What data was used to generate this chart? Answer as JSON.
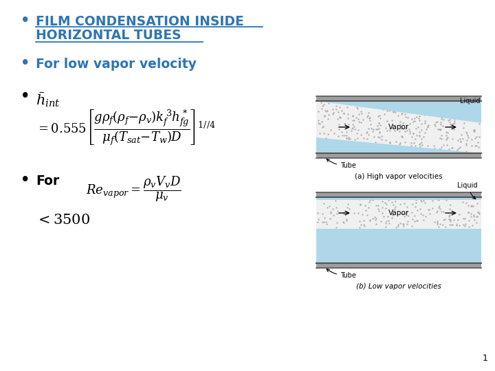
{
  "bg_color": "#ffffff",
  "title_color": "#2E75B6",
  "bullet_color": "#2E75B6",
  "text_color": "#000000",
  "liquid_color": "#AED8EA",
  "tube_wall_color": "#9E9E9E",
  "tube_line_color": "#555555",
  "vapor_bg_color": "#F0F0F0",
  "dot_color": "#AAAAAA",
  "slide_number": "1",
  "bullet1_line1": "FILM CONDENSATION INSIDE",
  "bullet1_line2": "HORIZONTAL TUBES",
  "bullet2": "For low vapor velocity",
  "diagram_a_label": "(a) High vapor velocities",
  "diagram_b_label": "(b) Low vapor velocities"
}
